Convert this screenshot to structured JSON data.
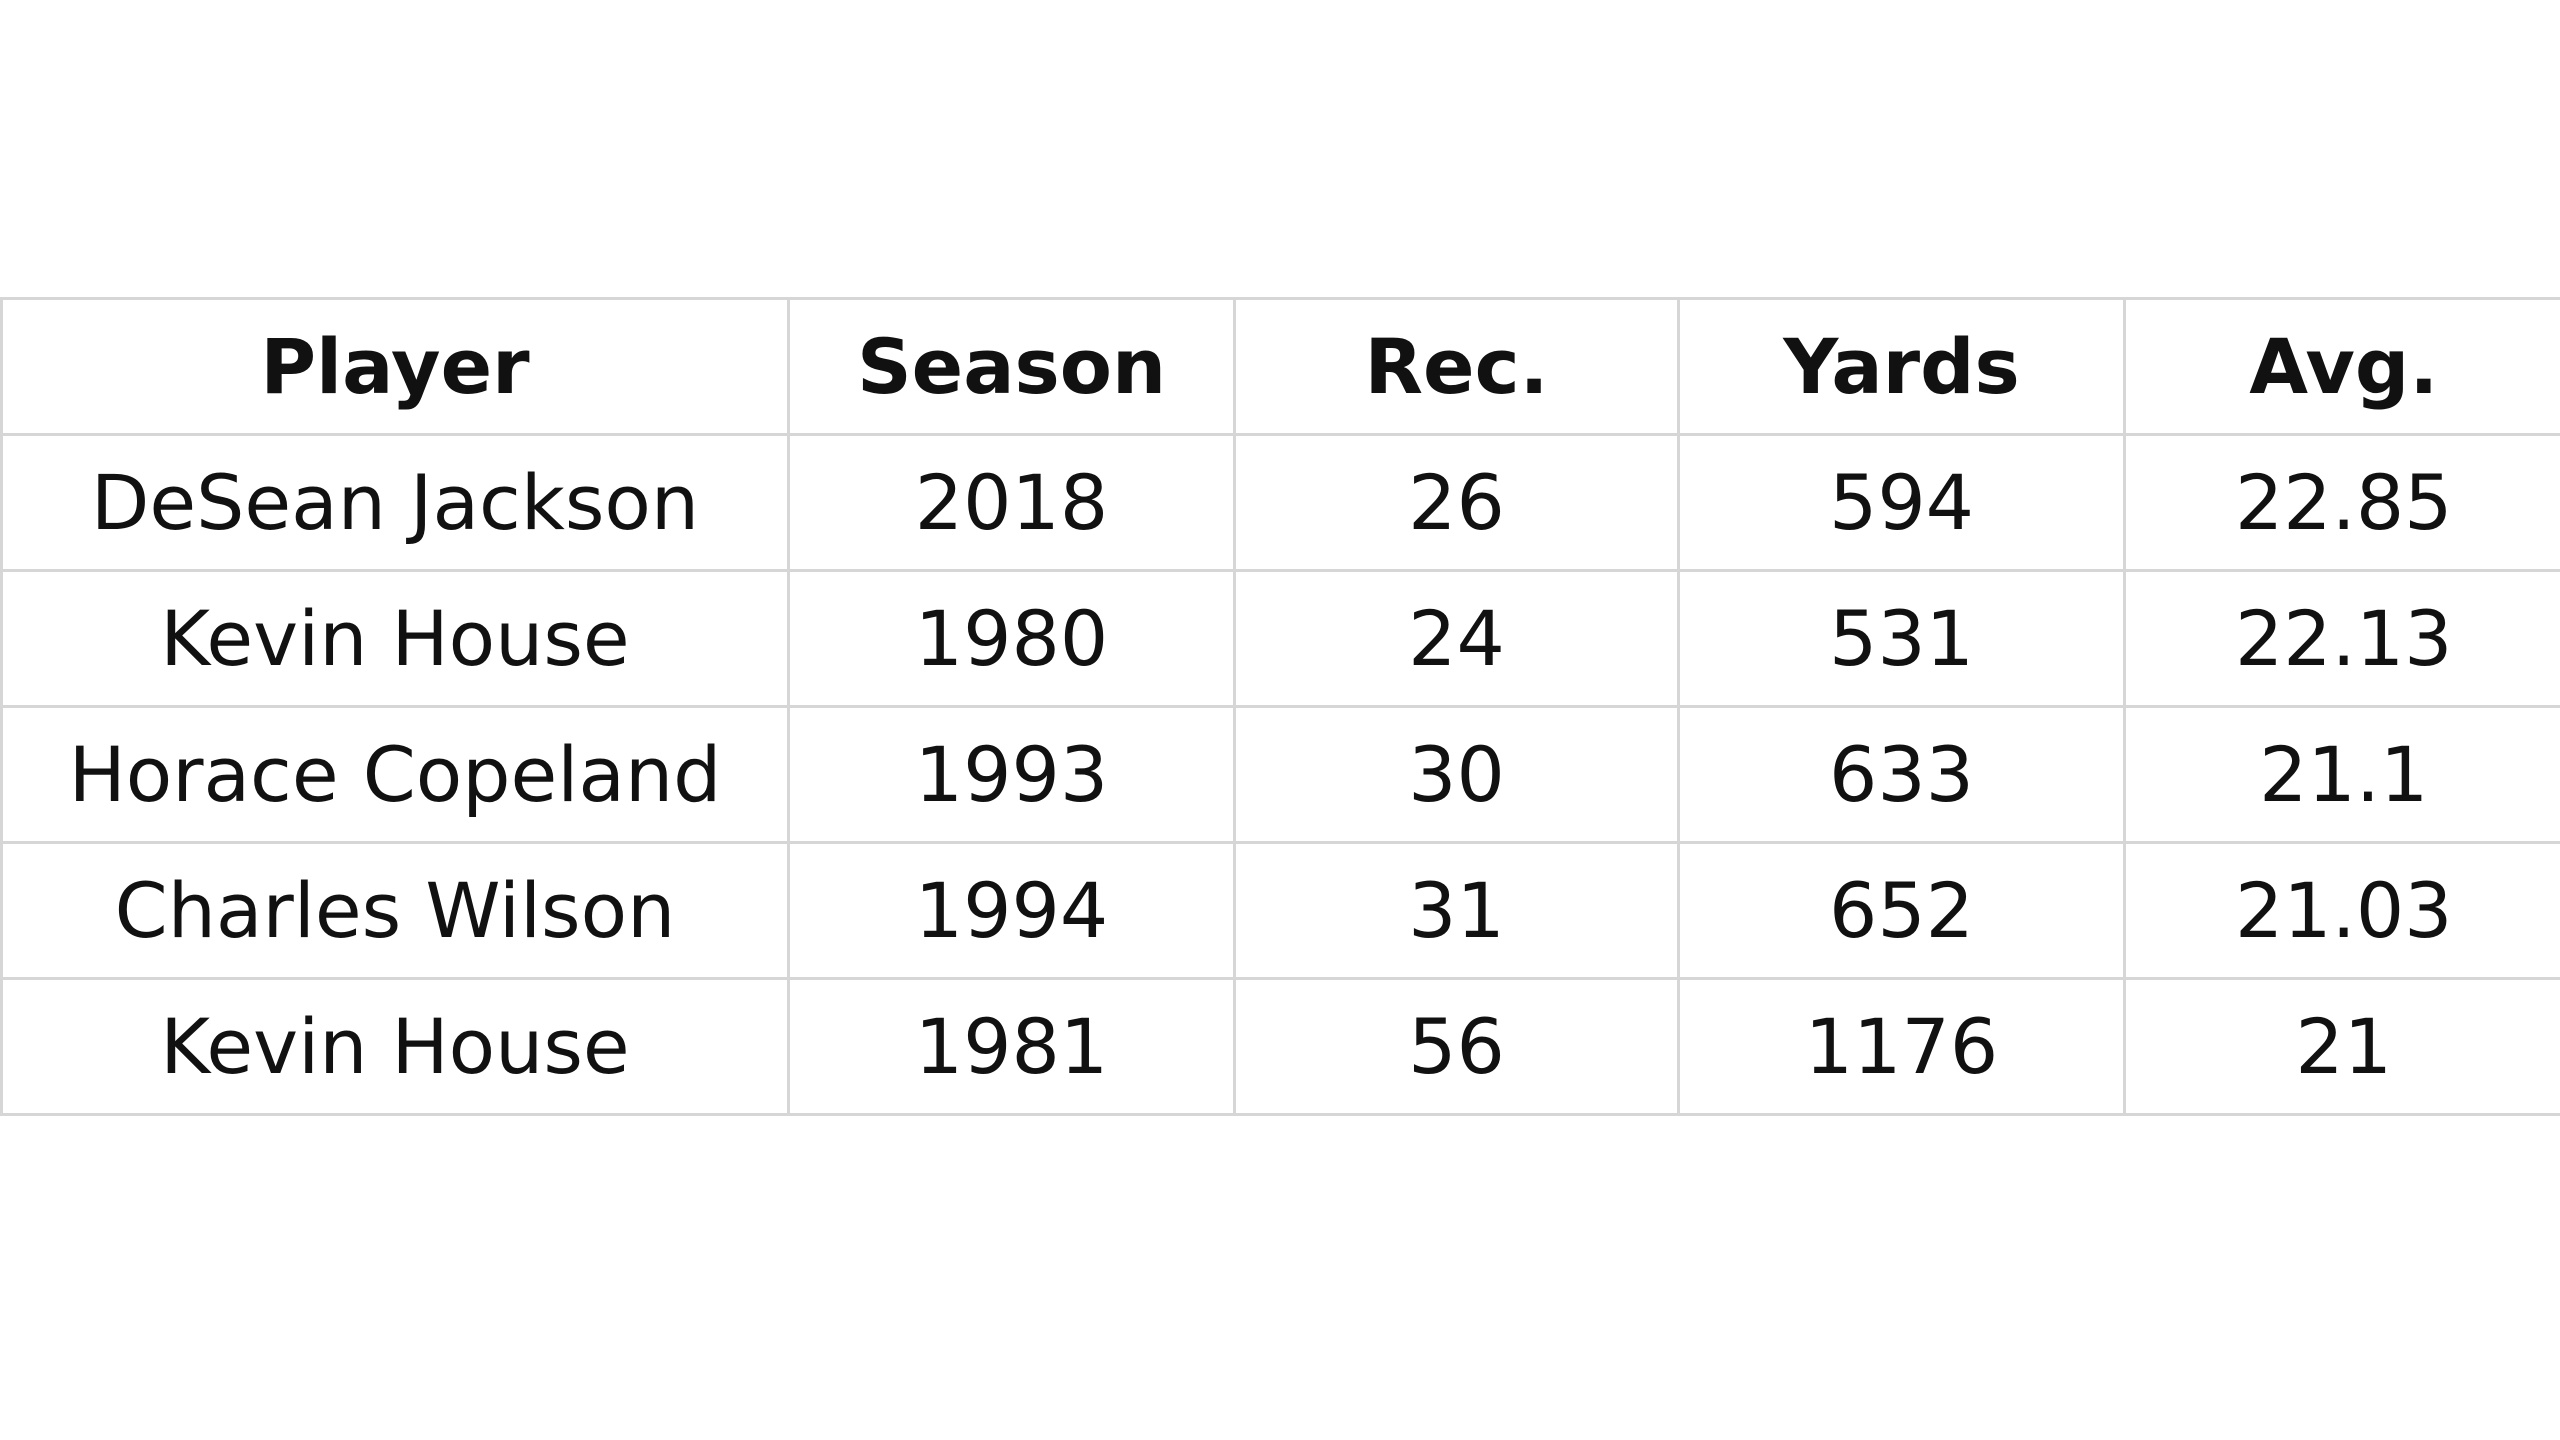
{
  "table": {
    "header": [
      "Player",
      "Season",
      "Rec.",
      "Yards",
      "Avg."
    ],
    "rows": [
      [
        "DeSean Jackson",
        "2018",
        "26",
        "594",
        "22.85"
      ],
      [
        "Kevin House",
        "1980",
        "24",
        "531",
        "22.13"
      ],
      [
        "Horace Copeland",
        "1993",
        "30",
        "633",
        "21.1"
      ],
      [
        "Charles Wilson",
        "1994",
        "31",
        "652",
        "21.03"
      ],
      [
        "Kevin House",
        "1981",
        "56",
        "1176",
        "21"
      ]
    ]
  }
}
